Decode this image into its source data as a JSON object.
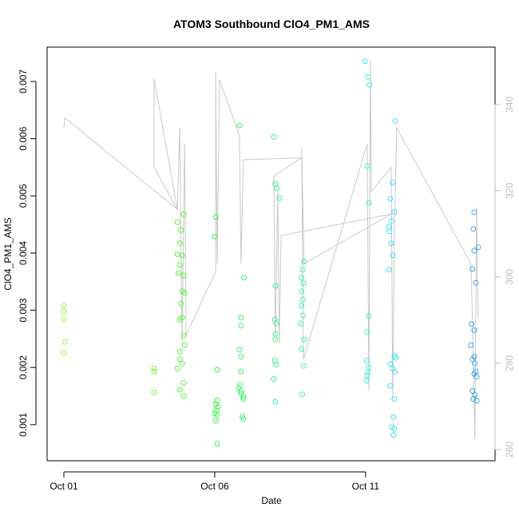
{
  "chart_data": {
    "type": "scatter",
    "title": "ATOM3 Southbound ClO4_PM1_AMS",
    "x_label": "Date",
    "y_label": "ClO4_PM1_AMS",
    "xlim": [
      -0.556,
      14.29
    ],
    "xticks": [
      {
        "value": 0,
        "label": "Oct 01"
      },
      {
        "value": 5,
        "label": "Oct 06"
      },
      {
        "value": 10,
        "label": "Oct 11"
      }
    ],
    "ylim": [
      0.00037,
      0.0076
    ],
    "yticks": [
      0.001,
      0.002,
      0.003,
      0.004,
      0.005,
      0.006,
      0.007
    ],
    "y2lim": [
      257.4,
      353.3
    ],
    "y2ticks": [
      260,
      280,
      300,
      320,
      340
    ],
    "y2_color": "#bbbbbb",
    "series": [
      {
        "type": "line",
        "axis": "y2",
        "color": "#c8c8c8",
        "x": [
          0,
          0.03,
          3.76,
          2.99,
          2.99,
          3.76,
          3.84,
          3.92,
          4.0,
          4.05,
          5.03,
          5.03,
          5.08,
          5.16,
          5.82,
          5.87,
          5.95,
          7.88,
          6.96,
          7.01,
          7.09,
          7.14,
          7.2,
          10.85,
          7.96,
          7.88,
          7.94,
          10.05,
          10.11,
          10.16,
          10.19,
          10.85,
          10.9,
          10.95,
          11.03,
          13.49,
          13.54,
          13.62,
          13.68,
          13.73
        ],
        "values": [
          334.6,
          336.9,
          315.7,
          345.9,
          325.4,
          315.7,
          334.6,
          284.6,
          330.9,
          286.5,
          301.3,
          347.6,
          303.1,
          345.7,
          332.8,
          303.1,
          327.2,
          327.6,
          323.5,
          286.5,
          319.8,
          284.6,
          309.6,
          314.6,
          303.1,
          330.0,
          280.9,
          330.9,
          273.5,
          350.4,
          319.8,
          325.4,
          271.7,
          308.7,
          334.6,
          303.1,
          290.2,
          262.4,
          316.1,
          290.2
        ]
      },
      {
        "type": "scatter",
        "color": "#9cf03a",
        "x": [
          0,
          0,
          0,
          0.03,
          0
        ],
        "values": [
          0.00308,
          0.00298,
          0.00284,
          0.00245,
          0.00226
        ]
      },
      {
        "type": "scatter",
        "color": "#7cf03a",
        "x": [
          2.99,
          2.99,
          2.99
        ],
        "values": [
          0.00198,
          0.00193,
          0.00156
        ]
      },
      {
        "type": "scatter",
        "color": "#5cf03a",
        "x": [
          3.76,
          3.97,
          3.88,
          3.84,
          3.76,
          3.92,
          3.84,
          3.8,
          3.97,
          3.92,
          4.0,
          3.88,
          3.92,
          3.84,
          3.97,
          4.0,
          3.84,
          3.84,
          3.92,
          3.76,
          3.97,
          3.84,
          3.97
        ],
        "values": [
          0.00454,
          0.00468,
          0.0044,
          0.00417,
          0.00398,
          0.00396,
          0.00379,
          0.00365,
          0.00361,
          0.00333,
          0.0033,
          0.00312,
          0.00287,
          0.00284,
          0.00256,
          0.00239,
          0.00228,
          0.00214,
          0.00207,
          0.00198,
          0.00173,
          0.00161,
          0.0015
        ]
      },
      {
        "type": "scatter",
        "color": "#3cf04a",
        "x": [
          5.03,
          5.0,
          5.08,
          5.08,
          5.03,
          5.11,
          5.05,
          5.0,
          5.08,
          5.03,
          5.08
        ],
        "values": [
          0.00463,
          0.00429,
          0.00196,
          0.00142,
          0.00136,
          0.00131,
          0.00125,
          0.0012,
          0.00117,
          0.00107,
          0.00067
        ]
      },
      {
        "type": "scatter",
        "color": "#3cf06a",
        "x": [
          5.82,
          5.97,
          5.87,
          5.87,
          5.82,
          5.87,
          5.87,
          5.84,
          5.79,
          5.87,
          5.87,
          5.95,
          5.95,
          5.92,
          5.95
        ],
        "values": [
          0.00623,
          0.00357,
          0.00287,
          0.00273,
          0.00231,
          0.00219,
          0.00193,
          0.0017,
          0.00164,
          0.00159,
          0.00154,
          0.00149,
          0.00145,
          0.00114,
          0.0011
        ]
      },
      {
        "type": "scatter",
        "color": "#3cf090",
        "x": [
          6.96,
          7.01,
          7.06,
          7.14,
          7.01,
          6.99,
          7.04,
          7.01,
          7.01,
          6.99,
          7.04,
          6.96,
          7.01
        ],
        "values": [
          0.00603,
          0.00521,
          0.00513,
          0.00496,
          0.00343,
          0.00284,
          0.00277,
          0.00259,
          0.00249,
          0.00212,
          0.00205,
          0.0018,
          0.0014
        ]
      },
      {
        "type": "scatter",
        "color": "#3cf0ae",
        "x": [
          7.96,
          7.92,
          7.88,
          7.94,
          7.88,
          7.92,
          7.88,
          7.92,
          7.85,
          7.96,
          7.88,
          7.94,
          7.9
        ],
        "values": [
          0.00385,
          0.00371,
          0.00357,
          0.00347,
          0.00333,
          0.00319,
          0.00308,
          0.00291,
          0.00277,
          0.00249,
          0.00232,
          0.00203,
          0.00153
        ]
      },
      {
        "type": "scatter",
        "color": "#3cf0e6",
        "x": [
          9.97,
          10.08,
          10.13,
          10.05,
          10.11,
          10.11,
          10.05,
          10.05,
          10.1,
          10.08,
          10.05,
          10.02
        ],
        "values": [
          0.00735,
          0.00708,
          0.00694,
          0.00552,
          0.00488,
          0.0029,
          0.00262,
          0.00212,
          0.002,
          0.00192,
          0.00186,
          0.00177
        ]
      },
      {
        "type": "scatter",
        "color": "#3ce0f0",
        "x": [
          10.98,
          10.9,
          10.82,
          10.95,
          10.85,
          10.77,
          10.79,
          10.85,
          10.9,
          10.77,
          10.95,
          11.0,
          10.82,
          10.9,
          10.98,
          10.82,
          10.95,
          10.92,
          10.87,
          10.95,
          10.92
        ],
        "values": [
          0.00631,
          0.00523,
          0.00495,
          0.00472,
          0.00456,
          0.00446,
          0.00438,
          0.00417,
          0.00396,
          0.00371,
          0.0022,
          0.00217,
          0.00206,
          0.00198,
          0.00192,
          0.00168,
          0.00145,
          0.00113,
          0.00096,
          0.00093,
          0.00082
        ]
      },
      {
        "type": "scatter",
        "color": "#3ca8e8",
        "x": [
          13.6,
          13.57,
          13.73,
          13.6,
          13.54,
          13.65,
          13.51,
          13.6,
          13.49,
          13.6,
          13.54,
          13.62,
          13.65,
          13.6,
          13.68,
          13.54,
          13.62,
          13.57,
          13.68
        ],
        "values": [
          0.00471,
          0.00442,
          0.0041,
          0.00404,
          0.00372,
          0.00348,
          0.00276,
          0.00265,
          0.00239,
          0.00219,
          0.00214,
          0.00207,
          0.00193,
          0.00189,
          0.00184,
          0.00159,
          0.00152,
          0.00145,
          0.00142
        ]
      }
    ]
  }
}
